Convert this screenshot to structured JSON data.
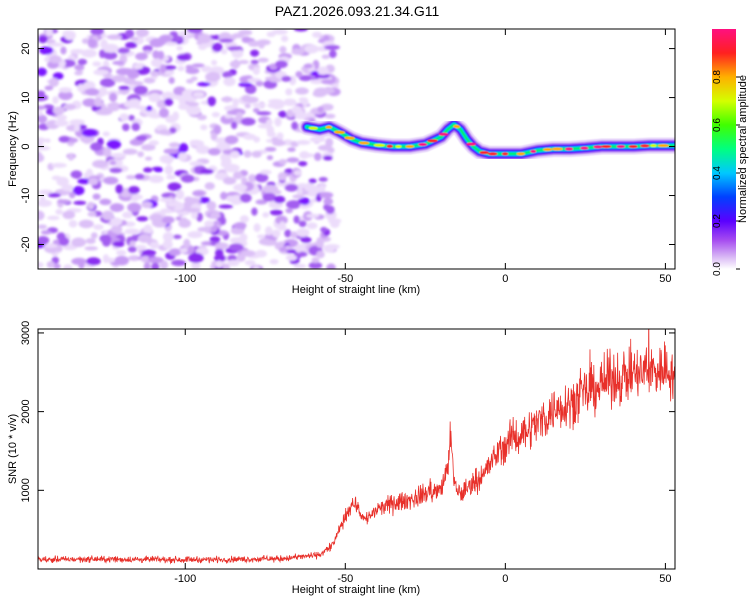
{
  "title": "PAZ1.2026.093.21.34.G11",
  "chart_data": [
    {
      "type": "heatmap",
      "xlabel": "Height of straight line (km)",
      "ylabel": "Frequency (Hz)",
      "xlim": [
        -146,
        53
      ],
      "ylim": [
        -25,
        24
      ],
      "xticks": [
        -100,
        -50,
        0,
        50
      ],
      "yticks": [
        -20,
        -10,
        0,
        10,
        20
      ],
      "colorbar": {
        "label": "Normalized spectral amplitude",
        "ticks": [
          "0.0",
          "0.2",
          "0.4",
          "0.6",
          "0.8"
        ],
        "range": [
          0,
          1
        ]
      },
      "noise_region_x": [
        -146,
        -56
      ],
      "ridge": {
        "x": [
          -62,
          -58,
          -55,
          -52,
          -48,
          -45,
          -40,
          -35,
          -30,
          -25,
          -20,
          -18,
          -16,
          -14,
          -12,
          -10,
          -8,
          -5,
          -2,
          0,
          5,
          10,
          15,
          20,
          25,
          30,
          35,
          40,
          45,
          50,
          53
        ],
        "y": [
          4,
          3.5,
          4,
          3,
          1.5,
          0.8,
          0.3,
          0,
          0,
          0.5,
          2,
          3.5,
          4.5,
          3.5,
          1.5,
          0,
          -1,
          -1.5,
          -1.5,
          -1.5,
          -1.5,
          -0.8,
          -0.5,
          -0.5,
          -0.3,
          0,
          0,
          0,
          0.2,
          0.2,
          0.2
        ]
      }
    },
    {
      "type": "line",
      "xlabel": "Height of straight line (km)",
      "ylabel": "SNR (10 * v/v)",
      "xlim": [
        -146,
        53
      ],
      "ylim": [
        0,
        3050
      ],
      "xticks": [
        -100,
        -50,
        0,
        50
      ],
      "yticks": [
        1000,
        2000,
        3000
      ],
      "series": [
        {
          "name": "SNR",
          "color": "#e8302a",
          "x": [
            -146,
            -130,
            -110,
            -90,
            -70,
            -58,
            -54,
            -52,
            -50,
            -48,
            -46,
            -44,
            -40,
            -36,
            -32,
            -28,
            -24,
            -20,
            -18,
            -17,
            -16,
            -14,
            -10,
            -6,
            -2,
            2,
            6,
            10,
            16,
            22,
            28,
            32,
            38,
            44,
            50,
            53
          ],
          "y": [
            120,
            125,
            120,
            120,
            130,
            180,
            300,
            480,
            650,
            850,
            780,
            620,
            750,
            820,
            860,
            900,
            980,
            1000,
            1300,
            1700,
            1050,
            950,
            1100,
            1250,
            1500,
            1650,
            1750,
            1850,
            2050,
            2150,
            2300,
            2400,
            2450,
            2500,
            2550,
            2450
          ]
        }
      ]
    }
  ]
}
